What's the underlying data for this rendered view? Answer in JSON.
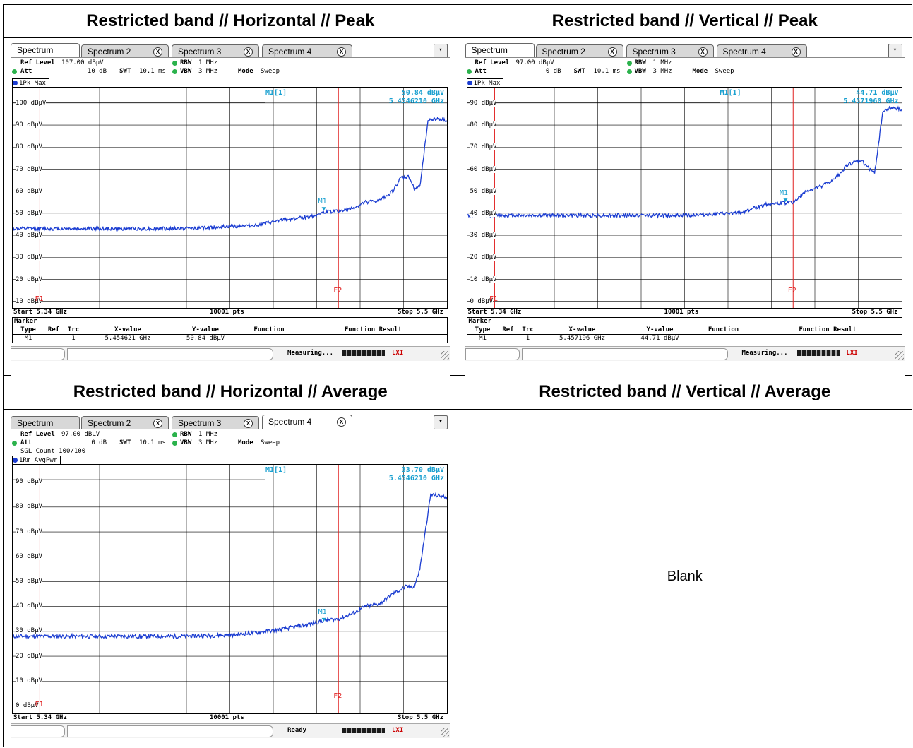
{
  "headers": {
    "h_peak": "Restricted band // Horizontal // Peak",
    "v_peak": "Restricted band // Vertical // Peak",
    "h_avg": "Restricted band // Horizontal // Average",
    "v_avg": "Restricted band // Vertical // Average"
  },
  "blank_text": "Blank",
  "tabs": [
    "Spectrum",
    "Spectrum 2",
    "Spectrum 3",
    "Spectrum 4"
  ],
  "menu_icon": "dropdown-menu-icon",
  "colors": {
    "trace": "#1a3cd1",
    "marker": "#1aa0d0",
    "lines": "#e02020",
    "rbw_dot": "#2bb24c"
  },
  "analyzers": {
    "hpeak": {
      "active_tab": 0,
      "ref_level_label": "Ref Level",
      "ref_level": "107.00 dBµV",
      "att_label": "Att",
      "att": "10 dB",
      "swt_label": "SWT",
      "swt": "10.1 ms",
      "rbw_label": "RBW",
      "rbw": "1 MHz",
      "vbw_label": "VBW",
      "vbw": "3 MHz",
      "mode_label": "Mode",
      "mode": "Sweep",
      "sgl": "",
      "trace_label": "1Pk Max",
      "marker_name": "M1[1]",
      "marker_level": "50.84 dBµV",
      "marker_freq": "5.4546210 GHz",
      "m1": "M1",
      "f1": "F1",
      "f2": "F2",
      "start": "Start 5.34 GHz",
      "pts": "10001 pts",
      "stop": "Stop 5.5 GHz",
      "marker_title": "Marker",
      "marker_cols": [
        "Type",
        "Ref",
        "Trc",
        "X-value",
        "Y-value",
        "Function",
        "Function Result"
      ],
      "marker_row": [
        "M1",
        "",
        "1",
        "5.454621 GHz",
        "50.84 dBµV",
        "",
        ""
      ],
      "status": "Measuring...",
      "lxi": "LXI",
      "chart_data": {
        "type": "line",
        "ylabels": [
          "100 dBµV",
          "90 dBµV",
          "80 dBµV",
          "70 dBµV",
          "60 dBµV",
          "50 dBµV",
          "40 dBµV",
          "30 dBµV",
          "20 dBµV",
          "10 dBµV"
        ],
        "ylim": [
          7,
          107
        ],
        "xlim": [
          5.34,
          5.5
        ],
        "f1": 5.35,
        "f2": 5.46,
        "marker": {
          "x": 5.454621,
          "y": 50.84
        },
        "x": [
          5.34,
          5.36,
          5.38,
          5.4,
          5.41,
          5.42,
          5.43,
          5.44,
          5.45,
          5.455,
          5.46,
          5.465,
          5.47,
          5.475,
          5.48,
          5.483,
          5.486,
          5.488,
          5.49,
          5.493,
          5.496,
          5.5
        ],
        "y": [
          43,
          43,
          43,
          43,
          43.3,
          44,
          44.5,
          47,
          48.5,
          50.5,
          51,
          52,
          55,
          55.5,
          60,
          66,
          66.5,
          61,
          62,
          92,
          93,
          92
        ]
      }
    },
    "vpeak": {
      "active_tab": 0,
      "ref_level_label": "Ref Level",
      "ref_level": "97.00 dBµV",
      "att_label": "Att",
      "att": "0 dB",
      "swt_label": "SWT",
      "swt": "10.1 ms",
      "rbw_label": "RBW",
      "rbw": "1 MHz",
      "vbw_label": "VBW",
      "vbw": "3 MHz",
      "mode_label": "Mode",
      "mode": "Sweep",
      "sgl": "",
      "trace_label": "1Pk Max",
      "marker_name": "M1[1]",
      "marker_level": "44.71 dBµV",
      "marker_freq": "5.4571960 GHz",
      "m1": "M1",
      "f1": "F1",
      "f2": "F2",
      "start": "Start 5.34 GHz",
      "pts": "10001 pts",
      "stop": "Stop 5.5 GHz",
      "marker_title": "Marker",
      "marker_cols": [
        "Type",
        "Ref",
        "Trc",
        "X-value",
        "Y-value",
        "Function",
        "Function Result"
      ],
      "marker_row": [
        "M1",
        "",
        "1",
        "5.457196 GHz",
        "44.71 dBµV",
        "",
        ""
      ],
      "status": "Measuring...",
      "lxi": "LXI",
      "chart_data": {
        "type": "line",
        "ylabels": [
          "90 dBµV",
          "80 dBµV",
          "70 dBµV",
          "60 dBµV",
          "50 dBµV",
          "40 dBµV",
          "30 dBµV",
          "20 dBµV",
          "10 dBµV",
          "0 dBµV"
        ],
        "ylim": [
          -3,
          97
        ],
        "xlim": [
          5.34,
          5.5
        ],
        "f1": 5.35,
        "f2": 5.46,
        "marker": {
          "x": 5.457196,
          "y": 44.71
        },
        "x": [
          5.34,
          5.36,
          5.38,
          5.4,
          5.42,
          5.43,
          5.44,
          5.445,
          5.45,
          5.455,
          5.46,
          5.465,
          5.47,
          5.475,
          5.48,
          5.485,
          5.49,
          5.493,
          5.496,
          5.5
        ],
        "y": [
          39,
          39,
          39,
          39,
          39,
          39.5,
          40,
          42,
          44,
          44.5,
          45,
          50,
          52,
          55,
          62,
          64,
          58,
          86,
          88,
          87
        ]
      }
    },
    "havg": {
      "active_tab": 3,
      "ref_level_label": "Ref Level",
      "ref_level": "97.00 dBµV",
      "att_label": "Att",
      "att": "0 dB",
      "swt_label": "SWT",
      "swt": "10.1 ms",
      "rbw_label": "RBW",
      "rbw": "1 MHz",
      "vbw_label": "VBW",
      "vbw": "3 MHz",
      "mode_label": "Mode",
      "mode": "Sweep",
      "sgl": "SGL Count 100/100",
      "trace_label": "1Rm AvgPwr",
      "marker_name": "M1[1]",
      "marker_level": "33.70 dBµV",
      "marker_freq": "5.4546210 GHz",
      "m1": "M1",
      "f1": "F1",
      "f2": "F2",
      "start": "Start 5.34 GHz",
      "pts": "10001 pts",
      "stop": "Stop 5.5 GHz",
      "marker_title": "",
      "marker_cols": [],
      "marker_row": [],
      "status": "Ready",
      "lxi": "LXI",
      "chart_data": {
        "type": "line",
        "ylabels": [
          "90 dBµV",
          "80 dBµV",
          "70 dBµV",
          "60 dBµV",
          "50 dBµV",
          "40 dBµV",
          "30 dBµV",
          "20 dBµV",
          "10 dBµV",
          "0 dBµV"
        ],
        "ylim": [
          -3,
          97
        ],
        "xlim": [
          5.34,
          5.5
        ],
        "f1": 5.35,
        "f2": 5.46,
        "marker": {
          "x": 5.454621,
          "y": 33.7
        },
        "x": [
          5.34,
          5.36,
          5.38,
          5.4,
          5.42,
          5.43,
          5.44,
          5.45,
          5.455,
          5.46,
          5.465,
          5.47,
          5.475,
          5.48,
          5.485,
          5.488,
          5.49,
          5.492,
          5.494,
          5.5
        ],
        "y": [
          28,
          28,
          28,
          28,
          28.5,
          29.5,
          31,
          33,
          34.5,
          35,
          37,
          40,
          41,
          45,
          48,
          48,
          55,
          70,
          85,
          84
        ]
      }
    }
  }
}
